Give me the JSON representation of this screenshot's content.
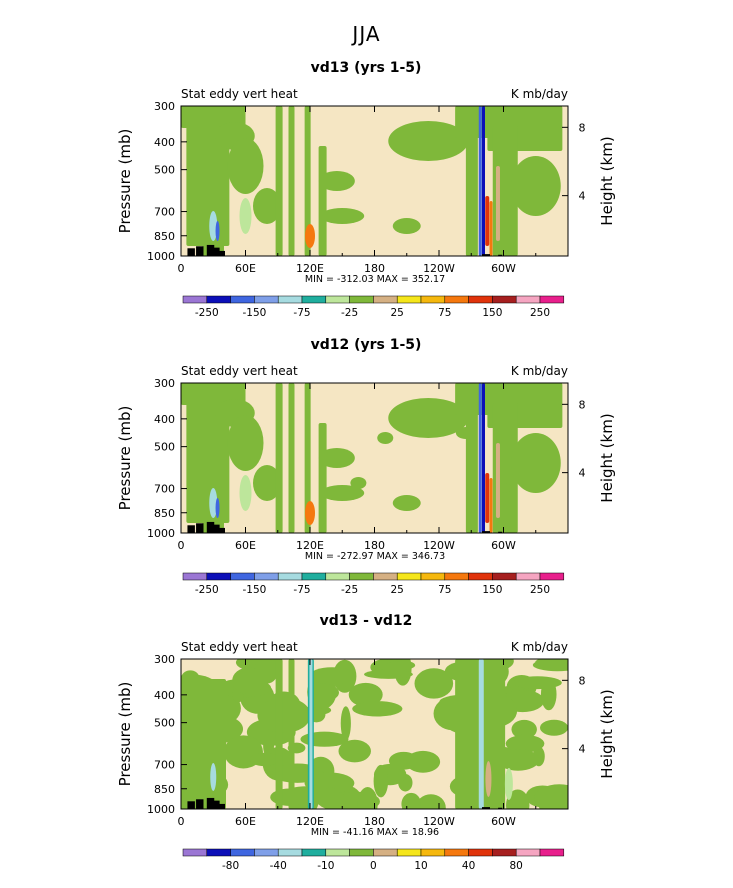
{
  "figure_title": "JJA",
  "colors": {
    "palette": [
      "#9b76d4",
      "#0c0fb8",
      "#3f66e0",
      "#7f9fe8",
      "#a6dbe0",
      "#1fae9e",
      "#bde69b",
      "#7fb83a",
      "#f5e6c3",
      "#d5b083",
      "#f5e61b",
      "#f5b80e",
      "#f5780e",
      "#e0330b",
      "#a61f1f",
      "#f5a5c1",
      "#e81f8c"
    ]
  },
  "charts": [
    {
      "title": "vd13 (yrs 1-5)",
      "left_label": "Stat eddy vert heat",
      "right_label": "K mb/day",
      "minmax": "MIN = -312.03   MAX = 352.17",
      "colorbar_labels": [
        "-250",
        "-150",
        "-75",
        "-25",
        "25",
        "75",
        "150",
        "250"
      ]
    },
    {
      "title": "vd12 (yrs 1-5)",
      "left_label": "Stat eddy vert heat",
      "right_label": "K mb/day",
      "minmax": "MIN = -272.97   MAX = 346.73",
      "colorbar_labels": [
        "-250",
        "-150",
        "-75",
        "-25",
        "25",
        "75",
        "150",
        "250"
      ]
    },
    {
      "title": "vd13 - vd12",
      "left_label": "Stat eddy vert heat",
      "right_label": "K mb/day",
      "minmax": "MIN = -41.16   MAX = 18.96",
      "colorbar_labels": [
        "-80",
        "-40",
        "-10",
        "0",
        "10",
        "40",
        "80"
      ]
    }
  ],
  "chart_data": [
    {
      "type": "heatmap",
      "title": "vd13 (yrs 1-5)",
      "xlabel": "",
      "ylabel": "Pressure (mb)",
      "y2label": "Height (km)",
      "x_ticks": [
        "0",
        "60E",
        "120E",
        "180",
        "120W",
        "60W"
      ],
      "x_tick_values": [
        0,
        60,
        120,
        180,
        240,
        300
      ],
      "xlim": [
        0,
        360
      ],
      "y_ticks": [
        "300",
        "400",
        "500",
        "700",
        "850",
        "1000"
      ],
      "y_tick_values": [
        300,
        400,
        500,
        700,
        850,
        1000
      ],
      "ylim": [
        1000,
        300
      ],
      "y_scale": "log",
      "y2_ticks": [
        "8",
        "4"
      ],
      "y2_tick_values": [
        8,
        4
      ],
      "contour_levels": [
        -250,
        -150,
        -75,
        -25,
        25,
        75,
        150,
        250
      ],
      "min": -312.03,
      "max": 352.17,
      "units": "K mb/day",
      "legend": "bottom"
    },
    {
      "type": "heatmap",
      "title": "vd12 (yrs 1-5)",
      "xlabel": "",
      "ylabel": "Pressure (mb)",
      "y2label": "Height (km)",
      "x_ticks": [
        "0",
        "60E",
        "120E",
        "180",
        "120W",
        "60W"
      ],
      "x_tick_values": [
        0,
        60,
        120,
        180,
        240,
        300
      ],
      "xlim": [
        0,
        360
      ],
      "y_ticks": [
        "300",
        "400",
        "500",
        "700",
        "850",
        "1000"
      ],
      "y_tick_values": [
        300,
        400,
        500,
        700,
        850,
        1000
      ],
      "ylim": [
        1000,
        300
      ],
      "y_scale": "log",
      "y2_ticks": [
        "8",
        "4"
      ],
      "y2_tick_values": [
        8,
        4
      ],
      "contour_levels": [
        -250,
        -150,
        -75,
        -25,
        25,
        75,
        150,
        250
      ],
      "min": -272.97,
      "max": 346.73,
      "units": "K mb/day",
      "legend": "bottom"
    },
    {
      "type": "heatmap",
      "title": "vd13 - vd12",
      "xlabel": "",
      "ylabel": "Pressure (mb)",
      "y2label": "Height (km)",
      "x_ticks": [
        "0",
        "60E",
        "120E",
        "180",
        "120W",
        "60W"
      ],
      "x_tick_values": [
        0,
        60,
        120,
        180,
        240,
        300
      ],
      "xlim": [
        0,
        360
      ],
      "y_ticks": [
        "300",
        "400",
        "500",
        "700",
        "850",
        "1000"
      ],
      "y_tick_values": [
        300,
        400,
        500,
        700,
        850,
        1000
      ],
      "ylim": [
        1000,
        300
      ],
      "y_scale": "log",
      "y2_ticks": [
        "8",
        "4"
      ],
      "y2_tick_values": [
        8,
        4
      ],
      "contour_levels": [
        -80,
        -40,
        -10,
        0,
        10,
        40,
        80
      ],
      "min": -41.16,
      "max": 18.96,
      "units": "K mb/day",
      "legend": "bottom"
    }
  ]
}
